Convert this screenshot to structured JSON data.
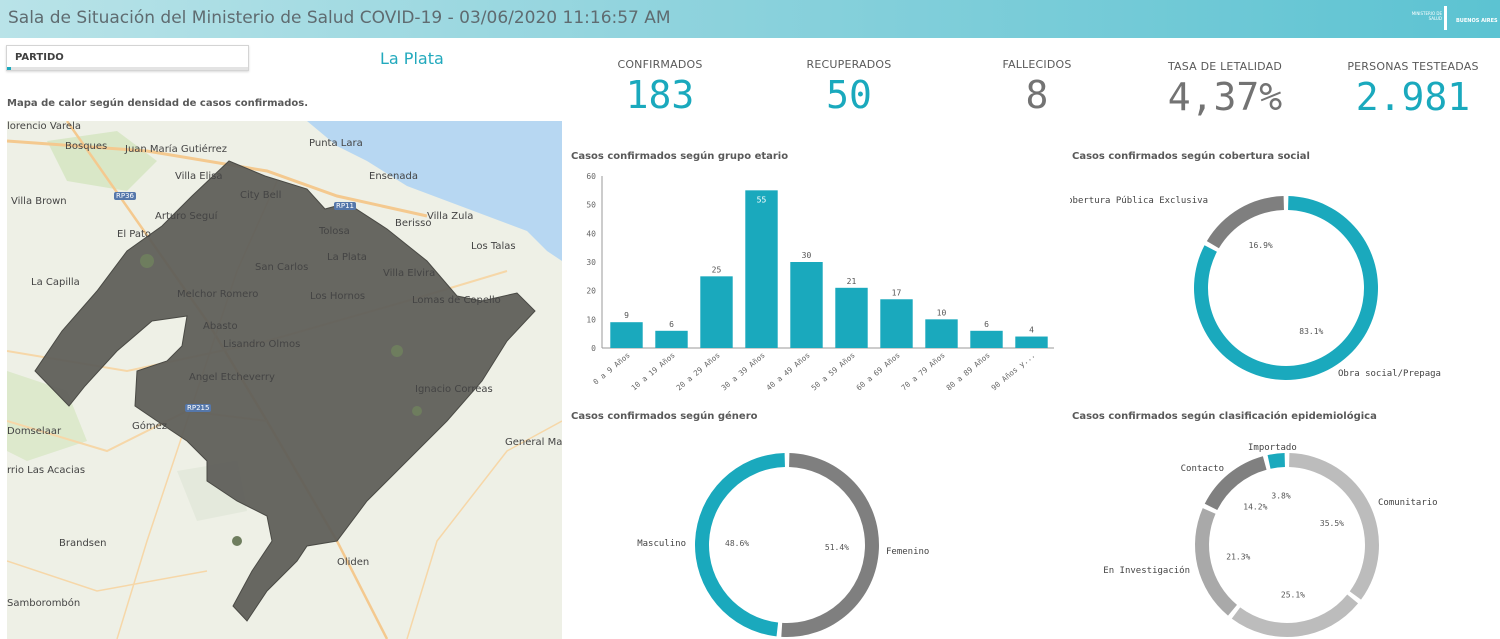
{
  "header": {
    "title": "Sala de Situación del Ministerio de Salud COVID-19 - 03/06/2020 11:16:57 AM",
    "logo_small": "MINISTERIO DE SALUD",
    "logo_main": "BUENOS AIRES"
  },
  "filter": {
    "label": "PARTIDO",
    "selected": "La Plata"
  },
  "map": {
    "caption": "Mapa de calor según densidad de casos confirmados.",
    "places": [
      {
        "name": "lorencio Varela"
      },
      {
        "name": "Bosques"
      },
      {
        "name": "Juan María Gutiérrez"
      },
      {
        "name": "Punta Lara"
      },
      {
        "name": "Villa Elisa"
      },
      {
        "name": "Ensenada"
      },
      {
        "name": "City Bell"
      },
      {
        "name": "Berisso"
      },
      {
        "name": "Villa Brown"
      },
      {
        "name": "Arturo Seguí"
      },
      {
        "name": "Villa Zula"
      },
      {
        "name": "El Pato"
      },
      {
        "name": "Tolosa"
      },
      {
        "name": "Los Talas"
      },
      {
        "name": "La Plata"
      },
      {
        "name": "San Carlos"
      },
      {
        "name": "Villa Elvira"
      },
      {
        "name": "La Capilla"
      },
      {
        "name": "Melchor Romero"
      },
      {
        "name": "Los Hornos"
      },
      {
        "name": "Lomas de Copello"
      },
      {
        "name": "Abasto"
      },
      {
        "name": "Lisandro Olmos"
      },
      {
        "name": "Angel Etcheverry"
      },
      {
        "name": "Ignacio Correas"
      },
      {
        "name": "Domselaar"
      },
      {
        "name": "Gómez"
      },
      {
        "name": "General Ma"
      },
      {
        "name": "rrio Las Acacias"
      },
      {
        "name": "Brandsen"
      },
      {
        "name": "Oliden"
      },
      {
        "name": "Samborombón"
      }
    ],
    "road_shields": [
      "RP36",
      "RP11",
      "RP215"
    ]
  },
  "kpis": [
    {
      "label": "CONFIRMADOS",
      "value": "183",
      "color": "#1aa9bd"
    },
    {
      "label": "RECUPERADOS",
      "value": "50",
      "color": "#1aa9bd"
    },
    {
      "label": "FALLECIDOS",
      "value": "8",
      "color": "#737373"
    },
    {
      "label": "TASA DE LETALIDAD",
      "value": "4,37%",
      "color": "#737373"
    },
    {
      "label": "PERSONAS TESTEADAS",
      "value": "2.981",
      "color": "#1aa9bd"
    }
  ],
  "chart_data": [
    {
      "type": "bar",
      "title": "Casos confirmados según grupo etario",
      "categories": [
        "0 a 9 Años",
        "10 a 19 Años",
        "20 a 29 Años",
        "30 a 39 Años",
        "40 a 49 Años",
        "50 a 59 Años",
        "60 a 69 Años",
        "70 a 79 Años",
        "80 a 89 Años",
        "90 Años y..."
      ],
      "values": [
        9,
        6,
        25,
        55,
        30,
        21,
        17,
        10,
        6,
        4
      ],
      "yticks": [
        "0",
        "10",
        "20",
        "30",
        "40",
        "50",
        "60"
      ],
      "ylim": [
        0,
        60
      ],
      "color": "#1aa9bd"
    },
    {
      "type": "pie",
      "title": "Casos confirmados según cobertura social",
      "slices": [
        {
          "name": "Obra social/Prepaga",
          "value": 83.1,
          "pct": "83.1%",
          "color": "#1aa9bd"
        },
        {
          "name": "Cobertura Pública Exclusiva",
          "value": 16.9,
          "pct": "16.9%",
          "color": "#7f7f7f"
        }
      ]
    },
    {
      "type": "pie",
      "title": "Casos confirmados según género",
      "slices": [
        {
          "name": "Femenino",
          "value": 51.4,
          "pct": "51.4%",
          "color": "#7f7f7f"
        },
        {
          "name": "Masculino",
          "value": 48.6,
          "pct": "48.6%",
          "color": "#1aa9bd"
        }
      ]
    },
    {
      "type": "pie",
      "title": "Casos confirmados según clasificación epidemiológica",
      "slices": [
        {
          "name": "Comunitario",
          "value": 35.5,
          "pct": "35.5%",
          "color": "#bcbcbc"
        },
        {
          "name": "",
          "value": 25.1,
          "pct": "25.1%",
          "color": "#bcbcbc"
        },
        {
          "name": "En Investigación",
          "value": 21.3,
          "pct": "21.3%",
          "color": "#a9a9a9"
        },
        {
          "name": "Contacto",
          "value": 14.2,
          "pct": "14.2%",
          "color": "#808080"
        },
        {
          "name": "Importado",
          "value": 3.8,
          "pct": "3.8%",
          "color": "#1aa9bd"
        }
      ]
    }
  ]
}
